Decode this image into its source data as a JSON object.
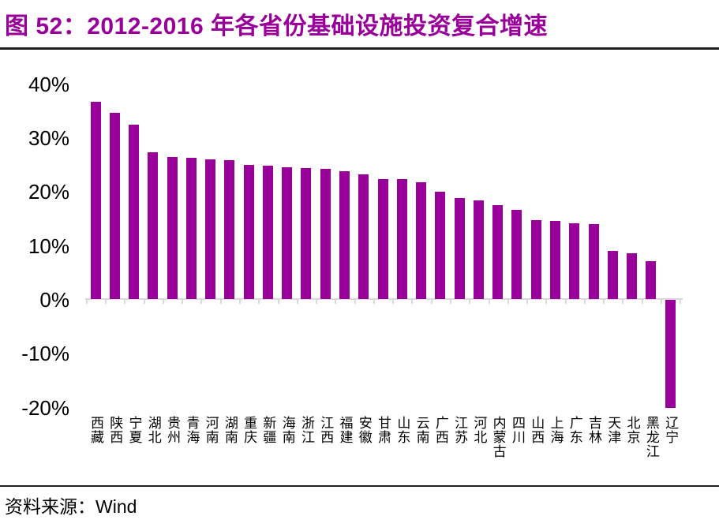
{
  "title": "图 52：2012-2016 年各省份基础设施投资复合增速",
  "source": {
    "prefix": "资料来源：",
    "name": "Wind"
  },
  "colors": {
    "bar_color": "#990099",
    "title_color": "#990099",
    "rule_color": "#1f1f1f",
    "axis_color": "#d9d9d9",
    "text_color": "#000000"
  },
  "chart_data": {
    "type": "bar",
    "title": "2012-2016 年各省份基础设施投资复合增速",
    "xlabel": "",
    "ylabel": "",
    "unit": "%",
    "grid": false,
    "legend": null,
    "ylim": [
      -20,
      40
    ],
    "y_ticks": [
      "40%",
      "30%",
      "20%",
      "10%",
      "0%",
      "-10%",
      "-20%"
    ],
    "y_tick_values": [
      40,
      30,
      20,
      10,
      0,
      -10,
      -20
    ],
    "categories": [
      "西藏",
      "陕西",
      "宁夏",
      "湖北",
      "贵州",
      "青海",
      "河南",
      "湖南",
      "重庆",
      "新疆",
      "海南",
      "浙江",
      "江西",
      "福建",
      "安徽",
      "甘肃",
      "山东",
      "云南",
      "广西",
      "江苏",
      "河北",
      "内蒙古",
      "四川",
      "山西",
      "上海",
      "广东",
      "吉林",
      "天津",
      "北京",
      "黑龙江",
      "辽宁"
    ],
    "values": [
      36.6,
      34.5,
      32.4,
      27.2,
      26.4,
      26.2,
      25.9,
      25.8,
      24.9,
      24.7,
      24.5,
      24.3,
      24.2,
      23.7,
      23.2,
      22.3,
      22.2,
      21.6,
      19.9,
      18.8,
      18.3,
      17.4,
      16.6,
      14.7,
      14.5,
      14.1,
      13.9,
      8.9,
      8.5,
      7.0,
      -20.0
    ]
  }
}
